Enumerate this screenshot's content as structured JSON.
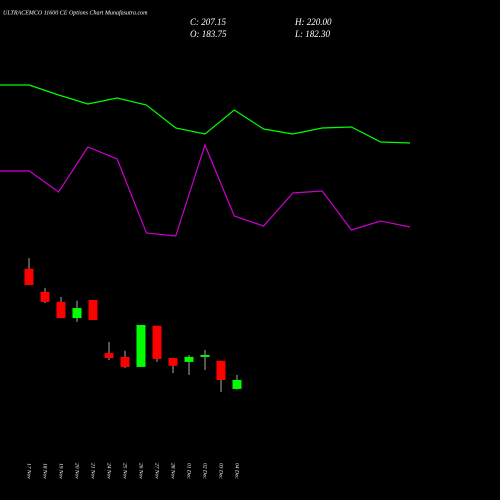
{
  "chart_data": [
    {
      "type": "line",
      "title": "ULTRACEMCO 11600 CE Options Chart Munafasutra.com",
      "categories": [
        null,
        null,
        null,
        null,
        null,
        null,
        null,
        null,
        null,
        null,
        null,
        null,
        null,
        null,
        null
      ],
      "ylim": [
        0,
        100
      ],
      "series": [
        {
          "color": "#00ff00",
          "values": [
            87.5,
            87.5,
            82.5,
            78,
            81,
            77.5,
            66,
            63,
            75,
            65.5,
            63,
            66,
            66.5,
            59,
            58.5
          ]
        },
        {
          "color": "#cc00cc",
          "values": [
            44.5,
            44.5,
            34,
            56.5,
            50.5,
            13.5,
            12,
            57.5,
            22,
            17,
            33.5,
            34.5,
            15,
            19.5,
            16.5
          ]
        }
      ]
    },
    {
      "type": "candlestick",
      "ohlc_labels": [
        "C: 207.15",
        "O: 183.75",
        "H: 220.00",
        "L: 182.30"
      ],
      "categories": [
        "17 Nov",
        "18 Nov",
        "19 Nov",
        "20 Nov",
        "21 Nov",
        "24 Nov",
        "25 Nov",
        "26 Nov",
        "27 Nov",
        "28 Nov",
        "01 Dec",
        "02 Dec",
        "03 Dec",
        "04 Dec"
      ],
      "open": [
        496,
        436,
        410,
        368,
        415,
        277,
        267,
        241,
        348,
        264,
        254,
        267,
        257,
        183.75
      ],
      "high": [
        524,
        446,
        423,
        413,
        415,
        306,
        283,
        350,
        348,
        264,
        272,
        285,
        257,
        220
      ],
      "low": [
        454,
        407,
        368,
        358,
        363,
        259,
        238,
        241,
        254,
        225,
        220,
        233,
        176,
        182.3
      ],
      "close": [
        454,
        410,
        368,
        394,
        363,
        264,
        241,
        350,
        262,
        244,
        267,
        272,
        207,
        207.15
      ],
      "ylim": [
        155,
        545
      ],
      "up_color": "#00ff00",
      "down_color": "#ff0000"
    }
  ]
}
